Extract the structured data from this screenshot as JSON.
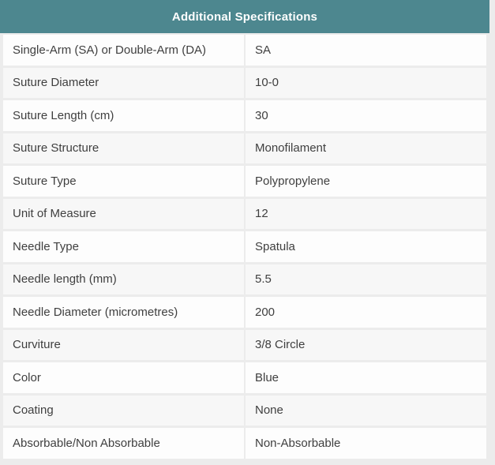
{
  "table": {
    "title": "Additional Specifications",
    "rows": [
      {
        "label": "Single-Arm (SA) or Double-Arm (DA)",
        "value": "SA"
      },
      {
        "label": "Suture Diameter",
        "value": "10-0"
      },
      {
        "label": "Suture Length (cm)",
        "value": "30"
      },
      {
        "label": "Suture Structure",
        "value": "Monofilament"
      },
      {
        "label": "Suture Type",
        "value": "Polypropylene"
      },
      {
        "label": "Unit of Measure",
        "value": "12"
      },
      {
        "label": "Needle Type",
        "value": "Spatula"
      },
      {
        "label": "Needle length (mm)",
        "value": "5.5"
      },
      {
        "label": "Needle Diameter (micrometres)",
        "value": "200"
      },
      {
        "label": "Curviture",
        "value": "3/8 Circle"
      },
      {
        "label": "Color",
        "value": "Blue"
      },
      {
        "label": "Coating",
        "value": "None"
      },
      {
        "label": "Absorbable/Non Absorbable",
        "value": "Non-Absorbable"
      }
    ]
  },
  "colors": {
    "header_bg": "#4d878f",
    "header_text": "#ffffff",
    "frame_bg": "#ececec",
    "row_odd_bg": "#fdfdfd",
    "row_even_bg": "#f7f7f7",
    "body_text": "#3f3f3f"
  }
}
